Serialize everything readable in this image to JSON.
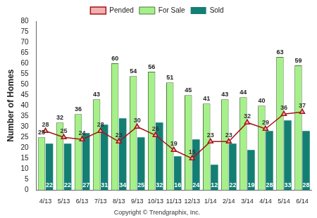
{
  "chart_data": {
    "type": "bar",
    "y_label": "Number of Homes",
    "annotations": [
      "Copyright © Trendgraphix, Inc."
    ],
    "categories": [
      "4/13",
      "5/13",
      "6/13",
      "7/13",
      "8/13",
      "9/13",
      "10/13",
      "11/13",
      "12/13",
      "1/14",
      "2/14",
      "3/14",
      "4/14",
      "5/14",
      "6/14"
    ],
    "series": [
      {
        "name": "For Sale",
        "type": "bar",
        "color": "#a6f08a",
        "values": [
          25,
          32,
          36,
          43,
          60,
          54,
          56,
          51,
          45,
          41,
          43,
          44,
          40,
          63,
          59
        ]
      },
      {
        "name": "Sold",
        "type": "bar",
        "color": "#137f73",
        "values": [
          22,
          22,
          27,
          31,
          34,
          25,
          32,
          16,
          24,
          12,
          22,
          19,
          28,
          33,
          28
        ]
      },
      {
        "name": "Pended",
        "type": "line",
        "color": "#a31515",
        "marker": "triangle",
        "values": [
          28,
          25,
          24,
          28,
          23,
          30,
          26,
          19,
          15,
          23,
          23,
          32,
          29,
          36,
          37
        ]
      }
    ],
    "ylim": [
      0,
      80
    ],
    "yticks": [
      0,
      5,
      10,
      15,
      20,
      25,
      30,
      35,
      40,
      45,
      50,
      55,
      60,
      65,
      70,
      75,
      80
    ],
    "grid": false,
    "legend": "top",
    "data_labels": true
  }
}
